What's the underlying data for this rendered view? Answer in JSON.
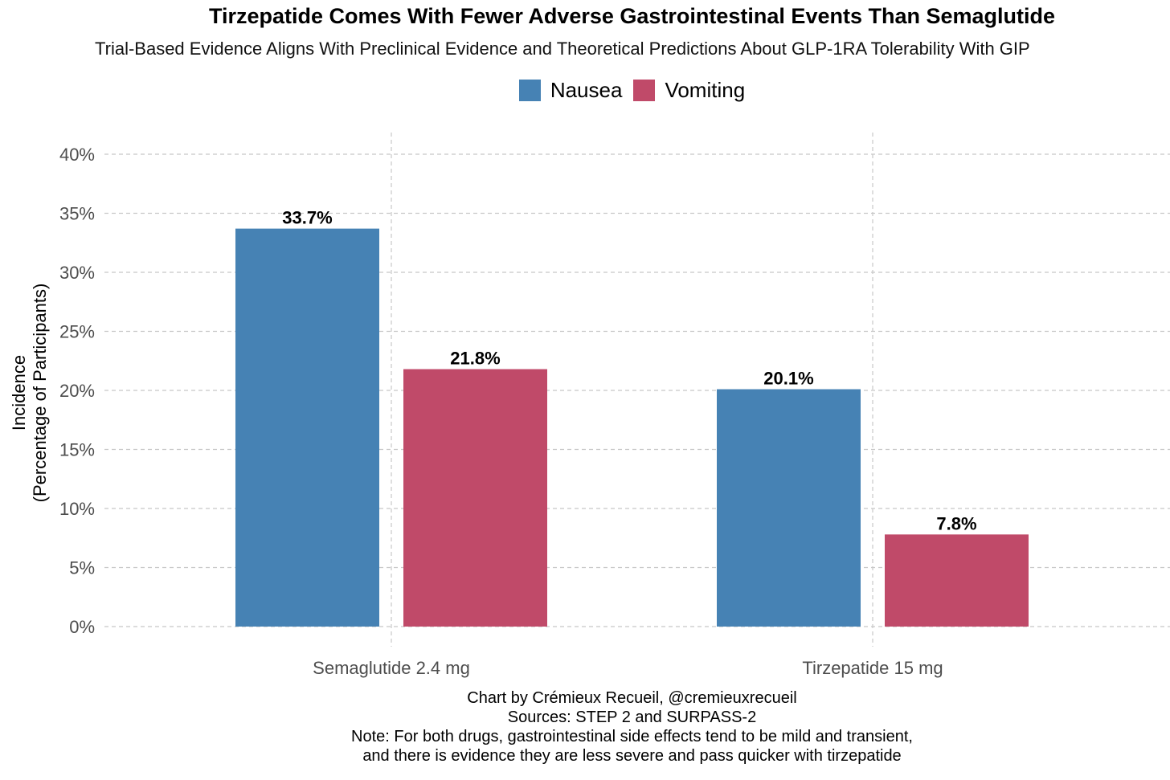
{
  "chart_data": {
    "type": "bar",
    "title": "Tirzepatide Comes With Fewer Adverse Gastrointestinal Events Than Semaglutide",
    "subtitle": "Trial-Based Evidence Aligns With Preclinical Evidence and Theoretical Predictions About GLP-1RA Tolerability With GIP",
    "categories": [
      "Semaglutide 2.4 mg",
      "Tirzepatide 15 mg"
    ],
    "series": [
      {
        "name": "Nausea",
        "color": "#4682b4",
        "values": [
          33.7,
          20.1
        ],
        "labels": [
          "33.7%",
          "20.1%"
        ]
      },
      {
        "name": "Vomiting",
        "color": "#c04a69",
        "values": [
          21.8,
          7.8
        ],
        "labels": [
          "21.8%",
          "7.8%"
        ]
      }
    ],
    "ylabel_lines": [
      "Incidence",
      "(Percentage of Participants)"
    ],
    "ylim": [
      0,
      40
    ],
    "yticks": [
      0,
      5,
      10,
      15,
      20,
      25,
      30,
      35,
      40
    ],
    "ytick_labels": [
      "0%",
      "5%",
      "10%",
      "15%",
      "20%",
      "25%",
      "30%",
      "35%",
      "40%"
    ],
    "legend_position": "top",
    "grid": true,
    "caption": {
      "line1": "Chart by Crémieux Recueil, @cremieuxrecueil",
      "line2": "Sources: STEP 2 and SURPASS-2",
      "line3": "Note: For both drugs, gastrointestinal side effects tend to be mild and transient,",
      "line4": "and there is evidence they are less severe and pass quicker with tirzepatide"
    }
  }
}
